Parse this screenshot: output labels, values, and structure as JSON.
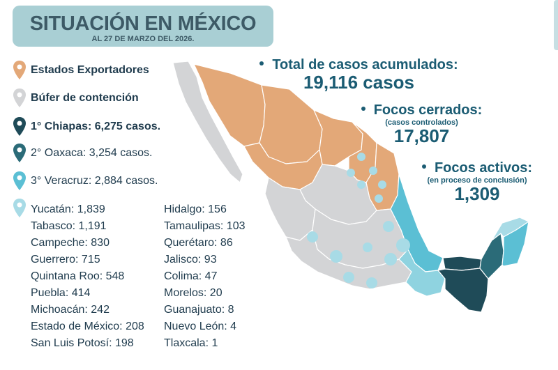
{
  "header": {
    "title": "SITUACIÓN EN MÉXICO",
    "subtitle": "AL 27 DE MARZO DEL 2026."
  },
  "legend": {
    "exportadores": "Estados Exportadores",
    "bufer": "Búfer de contención",
    "first": "1° Chiapas: 6,275 casos.",
    "second": "2° Oaxaca: 3,254 casos.",
    "third": "3° Veracruz: 2,884 casos."
  },
  "states_left": [
    "Yucatán: 1,839",
    "Tabasco: 1,191",
    "Campeche: 830",
    "Guerrero: 715",
    "Quintana Roo: 548",
    "Puebla: 414",
    "Michoacán: 242",
    "Estado de México: 208",
    "San Luis Potosí: 198"
  ],
  "states_right": [
    "Hidalgo: 156",
    "Tamaulipas: 103",
    "Querétaro: 86",
    "Jalisco: 93",
    "Colima: 47",
    "Morelos: 20",
    "Guanajuato: 8",
    "Nuevo León: 4",
    "Tlaxcala: 1"
  ],
  "stats": {
    "total_label": "Total de casos acumulados:",
    "total_value": "19,116 casos",
    "cerrados_label": "Focos cerrados:",
    "cerrados_sub": "(casos controlados)",
    "cerrados_value": "17,807",
    "activos_label": "Focos activos:",
    "activos_sub": "(en proceso de conclusión)",
    "activos_value": "1,309"
  },
  "colors": {
    "exportador": "#e3a878",
    "bufer": "#d3d4d6",
    "chiapas": "#1f4b58",
    "oaxaca": "#2b6b78",
    "veracruz": "#5bbfd4",
    "low": "#a8dbe6",
    "text_dark": "#1f3b4d",
    "stat_text": "#1b5c73",
    "title_bg": "#a9cfd4"
  },
  "icons": {
    "legend_marker": "map-pin-icon"
  }
}
